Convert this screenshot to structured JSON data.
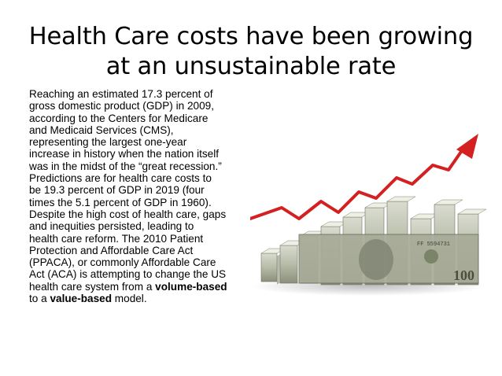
{
  "title": {
    "line1": "Health Care costs have been growing",
    "line2": "at an unsustainable rate"
  },
  "body": {
    "lines": [
      "Reaching an estimated 17.3 percent of",
      "gross domestic product (GDP) in 2009,",
      "according to the Centers for Medicare",
      "and Medicaid Services (CMS),",
      "representing the largest one-year",
      "increase in history when the nation itself",
      "was in the midst of the “great recession.”",
      "Predictions are for health care costs to",
      "be 19.3 percent of GDP in 2019 (four",
      "times the 5.1 percent of GDP in 1960).",
      "Despite the high cost of health care, gaps",
      "and inequities persisted, leading to",
      "health care reform. The 2010 Patient",
      "Protection and Affordable Care Act",
      "(PPACA), or commonly Affordable Care",
      "Act (ACA) is attempting to change the US"
    ],
    "line17_pre": "health care system from a ",
    "line17_bold": "volume-based",
    "line18_pre": "to a ",
    "line18_bold": "value-based",
    "line18_post": " model."
  },
  "illustration": {
    "description_icon": "money-stack-growth-arrow-image",
    "arrow_color": "#d42020",
    "bill_serial": "FF 5594731",
    "bill_denomination": "100"
  }
}
